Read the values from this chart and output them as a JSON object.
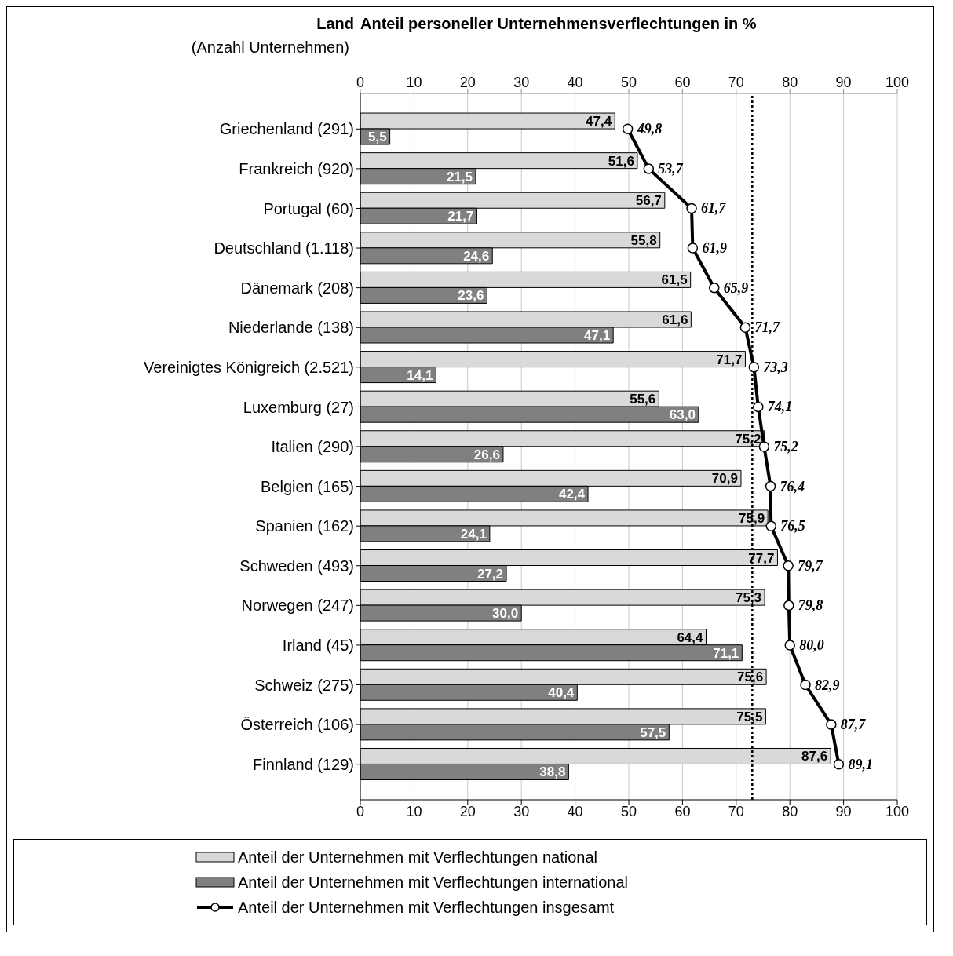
{
  "chart_data": {
    "type": "bar",
    "orientation": "horizontal",
    "x2label": "Anteil personeller Unternehmensverflechtungen in %",
    "ylabel": "Land",
    "annotations": [
      "(Anzahl Unternehmen)"
    ],
    "categories": [
      "Griechenland (291)",
      "Frankreich (920)",
      "Portugal (60)",
      "Deutschland (1.118)",
      "Dänemark (208)",
      "Niederlande (138)",
      "Vereinigtes Königreich (2.521)",
      "Luxemburg (27)",
      "Italien (290)",
      "Belgien (165)",
      "Spanien (162)",
      "Schweden (493)",
      "Norwegen (247)",
      "Irland (45)",
      "Schweiz (275)",
      "Österreich (106)",
      "Finnland (129)"
    ],
    "series": [
      {
        "name": "Anteil der Unternehmen mit Verflechtungen national",
        "color": "#d9d9d9",
        "values": [
          47.4,
          51.6,
          56.7,
          55.8,
          61.5,
          61.6,
          71.7,
          55.6,
          75.2,
          70.9,
          75.9,
          77.7,
          75.3,
          64.4,
          75.6,
          75.5,
          87.6
        ],
        "value_labels": [
          "47,4",
          "51,6",
          "56,7",
          "55,8",
          "61,5",
          "61,6",
          "71,7",
          "55,6",
          "75,2",
          "70,9",
          "75,9",
          "77,7",
          "75,3",
          "64,4",
          "75,6",
          "75,5",
          "87,6"
        ]
      },
      {
        "name": "Anteil der Unternehmen mit Verflechtungen international",
        "color": "#808080",
        "values": [
          5.5,
          21.5,
          21.7,
          24.6,
          23.6,
          47.1,
          14.1,
          63.0,
          26.6,
          42.4,
          24.1,
          27.2,
          30.0,
          71.1,
          40.4,
          57.5,
          38.8
        ],
        "value_labels": [
          "5,5",
          "21,5",
          "21,7",
          "24,6",
          "23,6",
          "47,1",
          "14,1",
          "63,0",
          "26,6",
          "42,4",
          "24,1",
          "27,2",
          "30,0",
          "71,1",
          "40,4",
          "57,5",
          "38,8"
        ]
      },
      {
        "name": "Anteil der Unternehmen mit Verflechtungen insgesamt",
        "type": "line",
        "color": "#000000",
        "marker": "circle",
        "values": [
          49.8,
          53.7,
          61.7,
          61.9,
          65.9,
          71.7,
          73.3,
          74.1,
          75.2,
          76.4,
          76.5,
          79.7,
          79.8,
          80.0,
          82.9,
          87.7,
          89.1
        ],
        "value_labels": [
          "49,8",
          "53,7",
          "61,7",
          "61,9",
          "65,9",
          "71,7",
          "73,3",
          "74,1",
          "75,2",
          "76,4",
          "76,5",
          "79,7",
          "79,8",
          "80,0",
          "82,9",
          "87,7",
          "89,1"
        ]
      }
    ],
    "xlim": [
      0,
      100
    ],
    "xticks": [
      0,
      10,
      20,
      30,
      40,
      50,
      60,
      70,
      80,
      90,
      100
    ],
    "x2lim": [
      0,
      100
    ],
    "x2ticks": [
      0,
      10,
      20,
      30,
      40,
      50,
      60,
      70,
      80,
      90,
      100
    ],
    "grid": "x",
    "legend": "bottom",
    "ref_lines": [
      {
        "axis": "x",
        "value": 73,
        "line_style": "dotted",
        "color": "#000000"
      }
    ]
  }
}
